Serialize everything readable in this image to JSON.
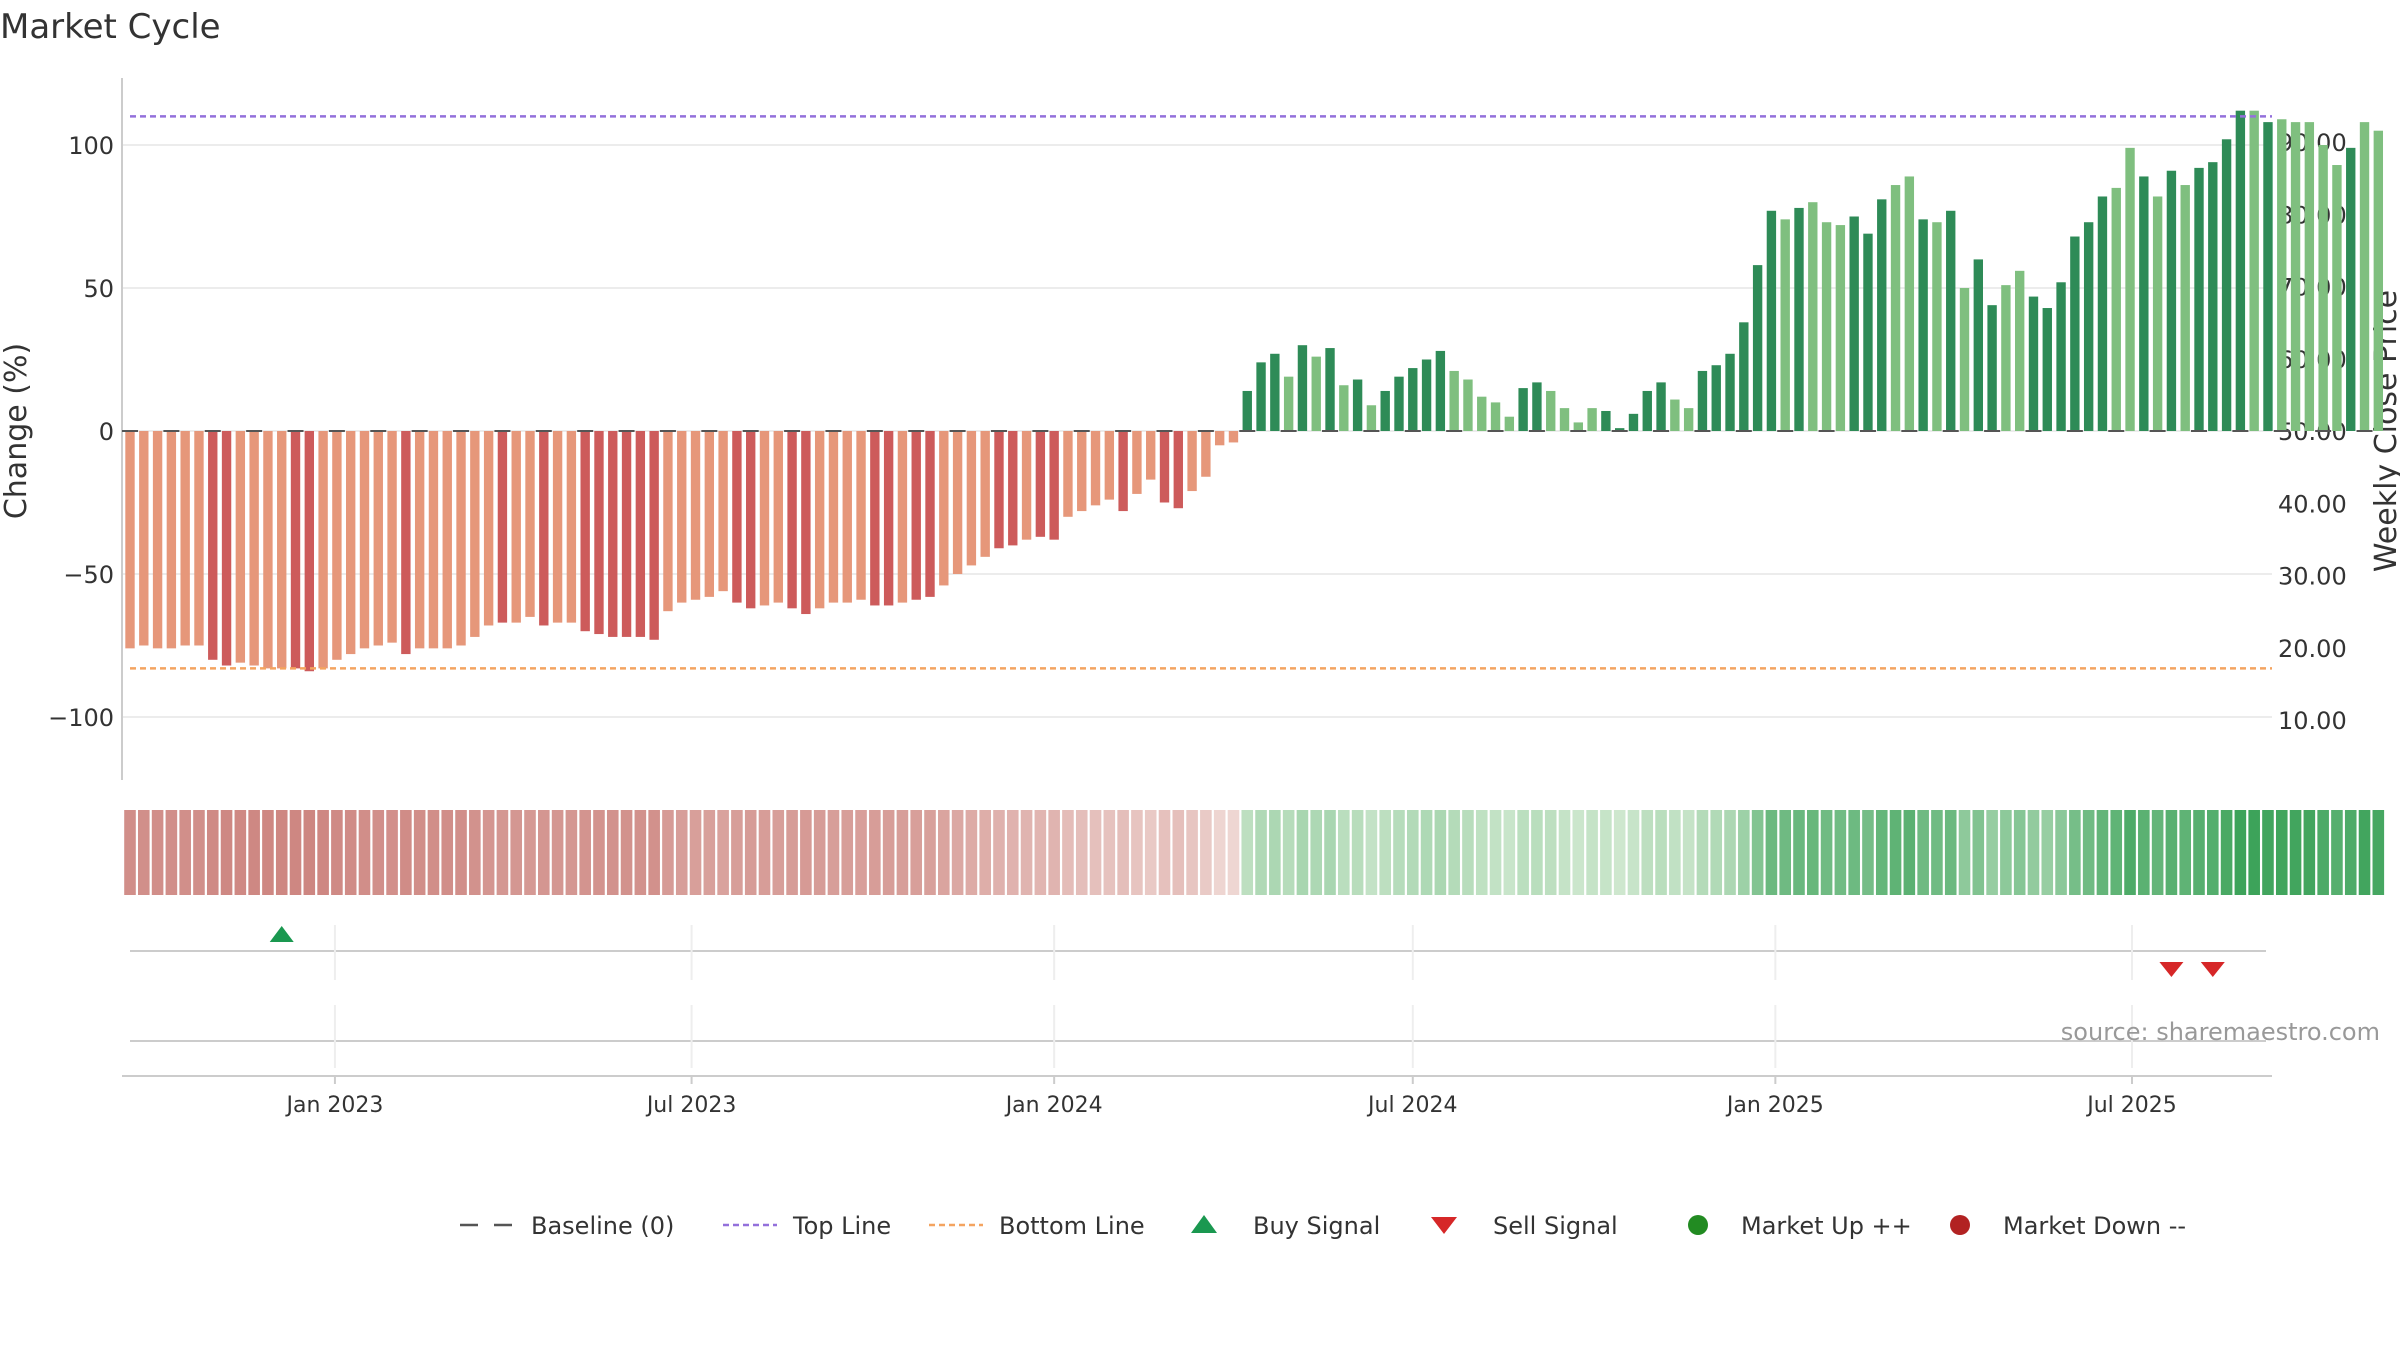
{
  "chart_data": {
    "type": "bar",
    "title": "Market Cycle",
    "ylabel": "Change (%)",
    "ylabel_right": "Weekly Close Price",
    "ylim": [
      -122,
      122
    ],
    "ylim_right": [
      0,
      100.2
    ],
    "yticks": [
      -100,
      -50,
      0,
      50,
      100
    ],
    "yticks_right": [
      "10.00",
      "20.00",
      "30.00",
      "40.00",
      "50.00",
      "60.00",
      "70.00",
      "80.00",
      "90.00"
    ],
    "xticks": [
      {
        "label": "Jan 2023",
        "date": "2023-01-01"
      },
      {
        "label": "Jul 2023",
        "date": "2023-07-01"
      },
      {
        "label": "Jan 2024",
        "date": "2024-01-01"
      },
      {
        "label": "Jul 2024",
        "date": "2024-07-01"
      },
      {
        "label": "Jan 2025",
        "date": "2025-01-01"
      },
      {
        "label": "Jul 2025",
        "date": "2025-07-01"
      }
    ],
    "x_start": "2022-09-19",
    "x_end": "2025-09-07",
    "grid": true,
    "top_line": 110,
    "bottom_line": -83,
    "colors": {
      "down_dark": "#cd5b5b",
      "down_light": "#e6977a",
      "up_dark": "#2e8b57",
      "up_light": "#7fbf7f",
      "top_line": "#9370db",
      "bottom_line": "#f4a460",
      "buy": "#1a9850",
      "sell": "#d62728",
      "market_up": "#228b22",
      "market_down": "#b22222"
    },
    "series": [
      {
        "name": "Change (%)",
        "start_date": "2022-09-19",
        "values": [
          -76,
          -75,
          -76,
          -76,
          -75,
          -75,
          -80,
          -82,
          -81,
          -82,
          -83,
          -83,
          -83,
          -84,
          -83,
          -80,
          -78,
          -76,
          -75,
          -74,
          -78,
          -76,
          -76,
          -76,
          -75,
          -72,
          -68,
          -67,
          -67,
          -65,
          -68,
          -67,
          -67,
          -70,
          -71,
          -72,
          -72,
          -72,
          -73,
          -63,
          -60,
          -59,
          -58,
          -56,
          -60,
          -62,
          -61,
          -60,
          -62,
          -64,
          -62,
          -60,
          -60,
          -59,
          -61,
          -61,
          -60,
          -59,
          -58,
          -54,
          -50,
          -47,
          -44,
          -41,
          -40,
          -38,
          -37,
          -38,
          -30,
          -28,
          -26,
          -24,
          -28,
          -22,
          -17,
          -25,
          -27,
          -21,
          -16,
          -5,
          -4,
          14,
          24,
          27,
          19,
          30,
          26,
          29,
          16,
          18,
          9,
          14,
          19,
          22,
          25,
          28,
          21,
          18,
          12,
          10,
          5,
          15,
          17,
          14,
          8,
          3,
          8,
          7,
          1,
          6,
          14,
          17,
          11,
          8,
          21,
          23,
          27,
          38,
          58,
          77,
          74,
          78,
          80,
          73,
          72,
          75,
          69,
          81,
          86,
          89,
          74,
          73,
          77,
          50,
          60,
          44,
          51,
          56,
          47,
          43,
          52,
          68,
          73,
          82,
          85,
          99,
          89,
          82,
          91,
          86,
          92,
          94,
          102,
          112,
          112,
          108,
          109,
          108,
          108,
          100,
          93,
          99,
          108,
          105
        ]
      },
      {
        "name": "Regime",
        "values": [
          "dl",
          "dl",
          "dl",
          "dl",
          "dl",
          "dl",
          "dd",
          "dd",
          "dl",
          "dl",
          "dl",
          "dl",
          "dd",
          "dd",
          "dl",
          "dl",
          "dl",
          "dl",
          "dl",
          "dl",
          "dd",
          "dl",
          "dl",
          "dl",
          "dl",
          "dl",
          "dl",
          "dd",
          "dl",
          "dl",
          "dd",
          "dl",
          "dl",
          "dd",
          "dd",
          "dd",
          "dd",
          "dd",
          "dd",
          "dl",
          "dl",
          "dl",
          "dl",
          "dl",
          "dd",
          "dd",
          "dl",
          "dl",
          "dd",
          "dd",
          "dl",
          "dl",
          "dl",
          "dl",
          "dd",
          "dd",
          "dl",
          "dd",
          "dd",
          "dl",
          "dl",
          "dl",
          "dl",
          "dd",
          "dd",
          "dl",
          "dd",
          "dd",
          "dl",
          "dl",
          "dl",
          "dl",
          "dd",
          "dl",
          "dl",
          "dd",
          "dd",
          "dl",
          "dl",
          "dl",
          "dl",
          "ud",
          "ud",
          "ud",
          "ul",
          "ud",
          "ul",
          "ud",
          "ul",
          "ud",
          "ul",
          "ud",
          "ud",
          "ud",
          "ud",
          "ud",
          "ul",
          "ul",
          "ul",
          "ul",
          "ul",
          "ud",
          "ud",
          "ul",
          "ul",
          "ul",
          "ul",
          "ud",
          "ud",
          "ud",
          "ud",
          "ud",
          "ul",
          "ul",
          "ud",
          "ud",
          "ud",
          "ud",
          "ud",
          "ud",
          "ul",
          "ud",
          "ul",
          "ul",
          "ul",
          "ud",
          "ud",
          "ud",
          "ul",
          "ul",
          "ud",
          "ul",
          "ud",
          "ul",
          "ud",
          "ud",
          "ul",
          "ul",
          "ud",
          "ud",
          "ud",
          "ud",
          "ud",
          "ud",
          "ul",
          "ul",
          "ud",
          "ul",
          "ud",
          "ul",
          "ud",
          "ud",
          "ud",
          "ud",
          "ul",
          "ud",
          "ul",
          "ul",
          "ul",
          "ul",
          "ul",
          "ud",
          "ul"
        ]
      }
    ],
    "buy_signals": [
      {
        "date": "2022-12-05"
      }
    ],
    "sell_signals": [
      {
        "date": "2025-07-21"
      },
      {
        "date": "2025-08-11"
      }
    ],
    "legend": [
      "Baseline (0)",
      "Top Line",
      "Bottom Line",
      "Buy Signal",
      "Sell Signal",
      "Market Up ++",
      "Market Down --"
    ],
    "legend_position": "bottom-center",
    "source": "source: sharemaestro.com"
  }
}
